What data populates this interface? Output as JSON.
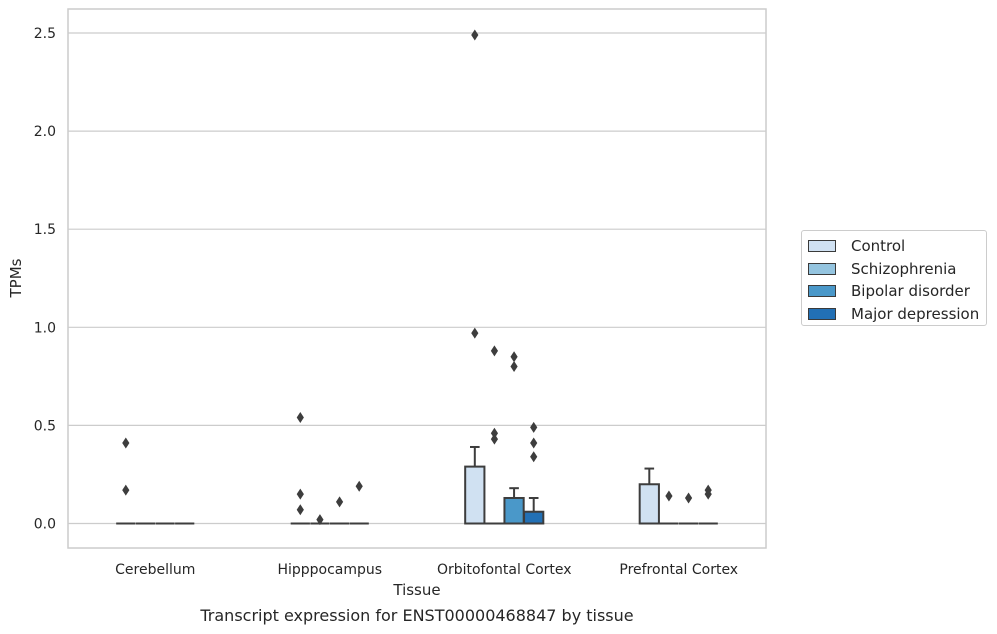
{
  "chart_data": {
    "type": "box",
    "title": "",
    "caption": "Transcript expression for ENST00000468847 by tissue",
    "xlabel": "Tissue",
    "ylabel": "TPMs",
    "ylim": [
      -0.12,
      2.62
    ],
    "yticks": [
      0.0,
      0.5,
      1.0,
      1.5,
      2.0,
      2.5
    ],
    "ytick_labels": [
      "0.0",
      "0.5",
      "1.0",
      "1.5",
      "2.0",
      "2.5"
    ],
    "grid": true,
    "legend_position": "right",
    "categories": [
      "Cerebellum",
      "Hipppocampus",
      "Orbitofontal Cortex",
      "Prefrontal Cortex"
    ],
    "series": [
      {
        "name": "Control",
        "color": "#d0e1f2",
        "boxes": [
          {
            "q1": 0,
            "median": 0,
            "q3": 0,
            "whisker_low": 0,
            "whisker_high": 0,
            "outliers": [
              0.17,
              0.41
            ]
          },
          {
            "q1": 0,
            "median": 0,
            "q3": 0,
            "whisker_low": 0,
            "whisker_high": 0,
            "outliers": [
              0.54,
              0.15,
              0.07
            ]
          },
          {
            "q1": 0,
            "median": 0,
            "q3": 0.29,
            "whisker_low": 0,
            "whisker_high": 0.39,
            "outliers": [
              2.49,
              0.97
            ]
          },
          {
            "q1": 0,
            "median": 0,
            "q3": 0.2,
            "whisker_low": 0,
            "whisker_high": 0.28,
            "outliers": []
          }
        ]
      },
      {
        "name": "Schizophrenia",
        "color": "#94c4df",
        "boxes": [
          {
            "q1": 0,
            "median": 0,
            "q3": 0,
            "whisker_low": 0,
            "whisker_high": 0,
            "outliers": []
          },
          {
            "q1": 0,
            "median": 0,
            "q3": 0,
            "whisker_low": 0,
            "whisker_high": 0,
            "outliers": [
              0.02
            ]
          },
          {
            "q1": 0,
            "median": 0,
            "q3": 0,
            "whisker_low": 0,
            "whisker_high": 0,
            "outliers": [
              0.88,
              0.46,
              0.43
            ]
          },
          {
            "q1": 0,
            "median": 0,
            "q3": 0,
            "whisker_low": 0,
            "whisker_high": 0,
            "outliers": [
              0.14
            ]
          }
        ]
      },
      {
        "name": "Bipolar disorder",
        "color": "#4a98c9",
        "boxes": [
          {
            "q1": 0,
            "median": 0,
            "q3": 0,
            "whisker_low": 0,
            "whisker_high": 0,
            "outliers": []
          },
          {
            "q1": 0,
            "median": 0,
            "q3": 0,
            "whisker_low": 0,
            "whisker_high": 0,
            "outliers": [
              0.11
            ]
          },
          {
            "q1": 0,
            "median": 0,
            "q3": 0.13,
            "whisker_low": 0,
            "whisker_high": 0.18,
            "outliers": [
              0.85,
              0.8
            ]
          },
          {
            "q1": 0,
            "median": 0,
            "q3": 0,
            "whisker_low": 0,
            "whisker_high": 0,
            "outliers": [
              0.13
            ]
          }
        ]
      },
      {
        "name": "Major depression",
        "color": "#2270b5",
        "boxes": [
          {
            "q1": 0,
            "median": 0,
            "q3": 0,
            "whisker_low": 0,
            "whisker_high": 0,
            "outliers": []
          },
          {
            "q1": 0,
            "median": 0,
            "q3": 0,
            "whisker_low": 0,
            "whisker_high": 0,
            "outliers": [
              0.19
            ]
          },
          {
            "q1": 0,
            "median": 0,
            "q3": 0.06,
            "whisker_low": 0,
            "whisker_high": 0.13,
            "outliers": [
              0.49,
              0.41,
              0.34
            ]
          },
          {
            "q1": 0,
            "median": 0,
            "q3": 0,
            "whisker_low": 0,
            "whisker_high": 0,
            "outliers": [
              0.17,
              0.15
            ]
          }
        ]
      }
    ]
  }
}
